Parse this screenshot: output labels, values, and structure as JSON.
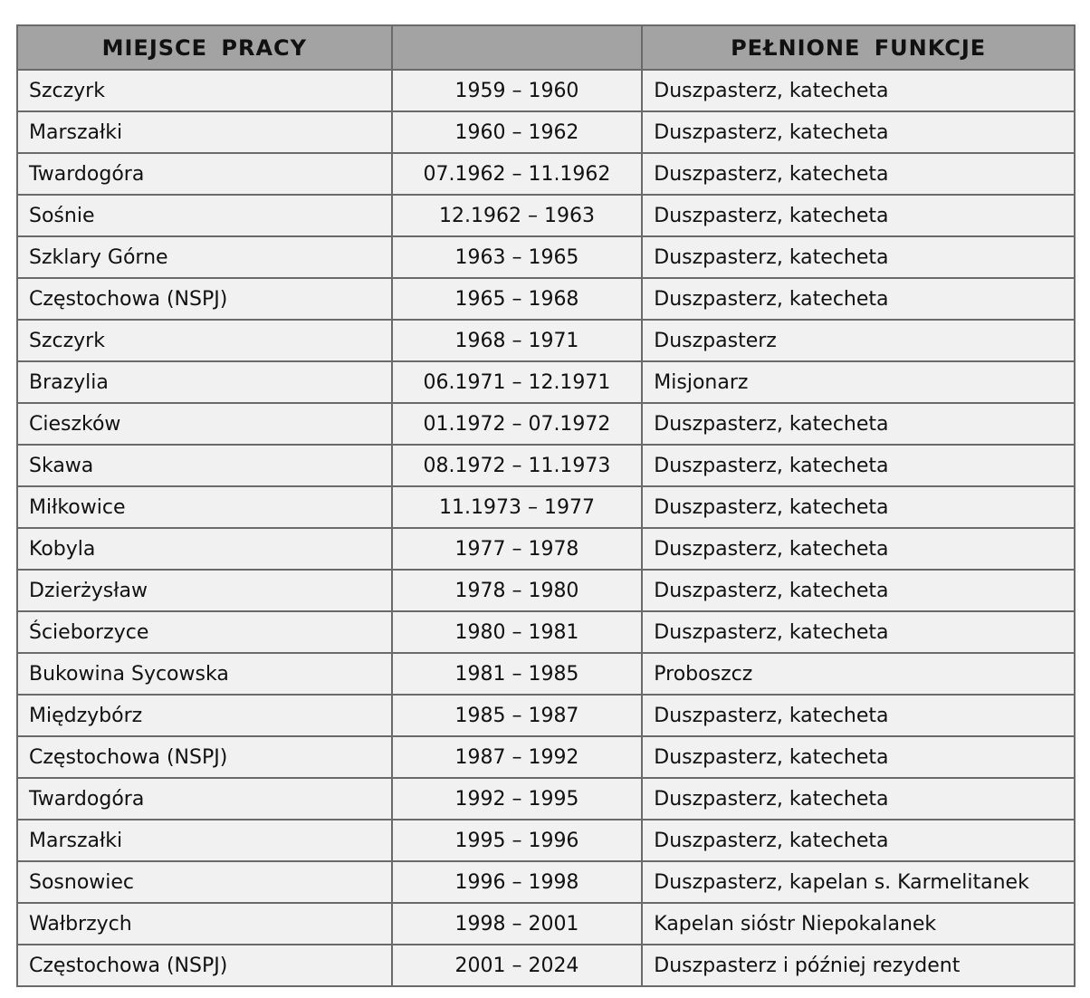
{
  "headers": [
    "MIEJSCE PRACY",
    "",
    "PEŁNIONE FUNKCJE"
  ],
  "rows": [
    [
      "Szczyrk",
      "1959 – 1960",
      "Duszpasterz, katecheta"
    ],
    [
      "Marszałki",
      "1960 – 1962",
      "Duszpasterz, katecheta"
    ],
    [
      "Twardogóra",
      "07.1962 – 11.1962",
      "Duszpasterz, katecheta"
    ],
    [
      "Sośnie",
      "12.1962 – 1963",
      "Duszpasterz, katecheta"
    ],
    [
      "Szklary Górne",
      "1963 – 1965",
      "Duszpasterz, katecheta"
    ],
    [
      "Częstochowa (NSPJ)",
      "1965 – 1968",
      "Duszpasterz, katecheta"
    ],
    [
      "Szczyrk",
      "1968 – 1971",
      "Duszpasterz"
    ],
    [
      "Brazylia",
      "06.1971 – 12.1971",
      "Misjonarz"
    ],
    [
      "Cieszków",
      "01.1972 – 07.1972",
      "Duszpasterz, katecheta"
    ],
    [
      "Skawa",
      "08.1972 – 11.1973",
      "Duszpasterz, katecheta"
    ],
    [
      "Miłkowice",
      "11.1973 – 1977",
      "Duszpasterz, katecheta"
    ],
    [
      "Kobyla",
      "1977 – 1978",
      "Duszpasterz, katecheta"
    ],
    [
      "Dzierżysław",
      "1978 – 1980",
      "Duszpasterz, katecheta"
    ],
    [
      "Ścieborzyce",
      "1980 – 1981",
      "Duszpasterz, katecheta"
    ],
    [
      "Bukowina Sycowska",
      "1981 – 1985",
      "Proboszcz"
    ],
    [
      "Międzybórz",
      "1985 – 1987",
      "Duszpasterz, katecheta"
    ],
    [
      "Częstochowa (NSPJ)",
      "1987 – 1992",
      "Duszpasterz, katecheta"
    ],
    [
      "Twardogóra",
      "1992 – 1995",
      "Duszpasterz, katecheta"
    ],
    [
      "Marszałki",
      "1995 – 1996",
      "Duszpasterz, katecheta"
    ],
    [
      "Sosnowiec",
      "1996 – 1998",
      "Duszpasterz, kapelan s. Karmelitanek"
    ],
    [
      "Wałbrzych",
      "1998 – 2001",
      "Kapelan sióstr Niepokalanek"
    ],
    [
      "Częstochowa (NSPJ)",
      "2001 – 2024",
      "Duszpasterz i później rezydent"
    ]
  ]
}
